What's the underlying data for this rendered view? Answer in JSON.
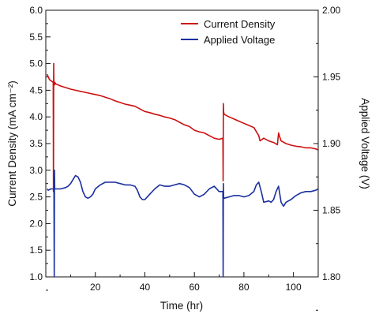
{
  "chart_data": {
    "type": "line",
    "title": "",
    "xlabel": "Time (hr)",
    "ylabel_left": "Current Density (mA cm⁻²)",
    "ylabel_right": "Applied Voltage (V)",
    "xlim": [
      0,
      110
    ],
    "ylim_left": [
      1.0,
      6.0
    ],
    "ylim_right": [
      1.8,
      2.0
    ],
    "x_ticks": [
      20,
      40,
      60,
      80,
      100
    ],
    "y_ticks_left": [
      "1.0",
      "1.5",
      "2.0",
      "2.5",
      "3.0",
      "3.5",
      "4.0",
      "4.5",
      "5.0",
      "5.5",
      "6.0"
    ],
    "y_ticks_right": [
      "1.80",
      "1.85",
      "1.90",
      "1.95",
      "2.00"
    ],
    "grid": false,
    "legend_position": "top-right",
    "series": [
      {
        "name": "Current Density",
        "axis": "left",
        "color": "#cc1010",
        "x": [
          0.5,
          1,
          1.5,
          2,
          3,
          3.1,
          3.2,
          3.3,
          3.5,
          3.6,
          4,
          6,
          8,
          10,
          12,
          14,
          16,
          18,
          20,
          22,
          24,
          26,
          28,
          30,
          32,
          34,
          36,
          38,
          40,
          42,
          44,
          46,
          48,
          50,
          52,
          54,
          56,
          58,
          60,
          62,
          64,
          66,
          68,
          70,
          71.5,
          71.6,
          71.7,
          71.8,
          72,
          74,
          76,
          78,
          80,
          82,
          84,
          86,
          86.5,
          88,
          90,
          92,
          93.5,
          94,
          94.5,
          95,
          97,
          99,
          101,
          103,
          105,
          107,
          109,
          110
        ],
        "y": [
          4.8,
          4.75,
          4.7,
          4.68,
          4.65,
          2.6,
          5.0,
          4.6,
          4.6,
          4.65,
          4.62,
          4.58,
          4.55,
          4.52,
          4.5,
          4.48,
          4.46,
          4.44,
          4.42,
          4.4,
          4.37,
          4.34,
          4.3,
          4.27,
          4.24,
          4.22,
          4.2,
          4.15,
          4.1,
          4.08,
          4.05,
          4.03,
          4.0,
          3.98,
          3.95,
          3.9,
          3.85,
          3.82,
          3.75,
          3.72,
          3.7,
          3.65,
          3.6,
          3.58,
          3.6,
          2.8,
          4.25,
          4.1,
          4.05,
          4.0,
          3.96,
          3.92,
          3.88,
          3.84,
          3.8,
          3.65,
          3.55,
          3.6,
          3.55,
          3.52,
          3.48,
          3.7,
          3.62,
          3.55,
          3.5,
          3.47,
          3.45,
          3.44,
          3.42,
          3.42,
          3.4,
          3.38
        ]
      },
      {
        "name": "Applied Voltage",
        "axis": "right",
        "color": "#1b2fa0",
        "x": [
          0.5,
          1,
          2,
          3,
          3.3,
          3.4,
          3.5,
          3.6,
          4,
          6,
          8,
          9,
          10,
          11,
          12,
          13,
          14,
          15,
          16,
          17,
          18,
          19,
          20,
          22,
          24,
          26,
          28,
          30,
          32,
          34,
          36,
          37,
          38,
          39,
          40,
          41,
          42,
          44,
          46,
          48,
          50,
          52,
          54,
          56,
          58,
          60,
          62,
          64,
          66,
          68,
          70,
          71.5,
          71.6,
          71.7,
          71.8,
          72,
          74,
          76,
          78,
          80,
          82,
          84,
          85,
          86,
          87,
          88,
          90,
          91,
          92,
          93,
          94,
          95,
          96,
          97,
          99,
          101,
          103,
          105,
          107,
          109,
          110
        ],
        "y": [
          1.866,
          1.865,
          1.866,
          1.866,
          1.866,
          1.8,
          1.88,
          1.866,
          1.866,
          1.866,
          1.867,
          1.868,
          1.87,
          1.873,
          1.876,
          1.875,
          1.871,
          1.864,
          1.86,
          1.859,
          1.86,
          1.862,
          1.866,
          1.869,
          1.871,
          1.871,
          1.871,
          1.87,
          1.869,
          1.869,
          1.868,
          1.865,
          1.86,
          1.858,
          1.858,
          1.86,
          1.862,
          1.866,
          1.869,
          1.868,
          1.868,
          1.869,
          1.87,
          1.869,
          1.867,
          1.862,
          1.86,
          1.862,
          1.866,
          1.868,
          1.864,
          1.864,
          1.8,
          1.87,
          1.86,
          1.859,
          1.86,
          1.861,
          1.861,
          1.86,
          1.861,
          1.864,
          1.869,
          1.871,
          1.864,
          1.856,
          1.857,
          1.856,
          1.858,
          1.864,
          1.868,
          1.856,
          1.853,
          1.856,
          1.858,
          1.861,
          1.863,
          1.864,
          1.864,
          1.865,
          1.866
        ]
      }
    ]
  }
}
